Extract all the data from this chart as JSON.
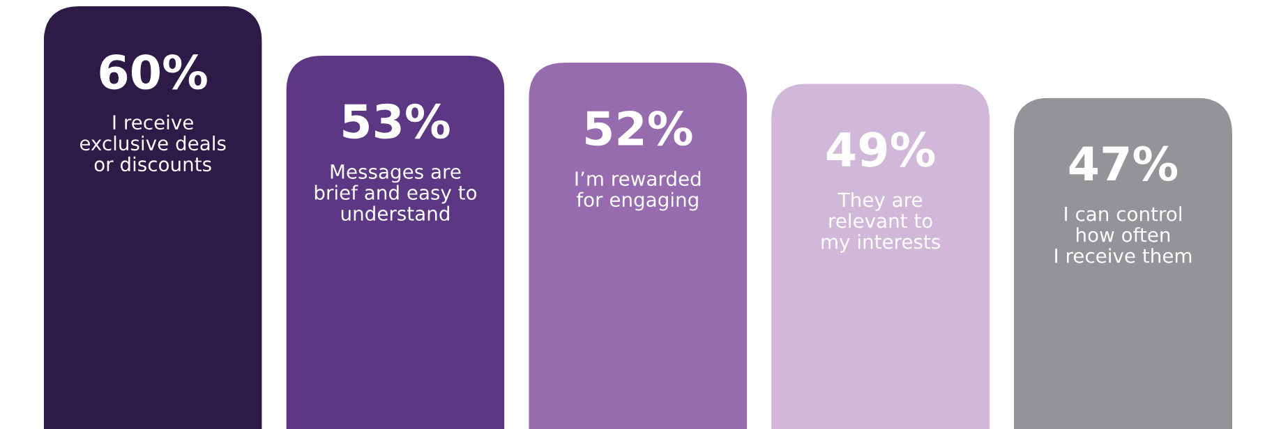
{
  "chart_data": {
    "type": "bar",
    "categories": [
      "I receive\nexclusive deals\nor discounts",
      "Messages are\nbrief and easy to\nunderstand",
      "I’m rewarded\nfor engaging",
      "They are\nrelevant to\nmy interests",
      "I can control\nhow often\nI receive them"
    ],
    "values": [
      60,
      53,
      52,
      49,
      47
    ],
    "value_labels": [
      "60%",
      "53%",
      "52%",
      "49%",
      "47%"
    ],
    "colors": [
      "#2e1a47",
      "#5c3784",
      "#966cae",
      "#d1b7d8",
      "#939498"
    ],
    "legend": false
  }
}
